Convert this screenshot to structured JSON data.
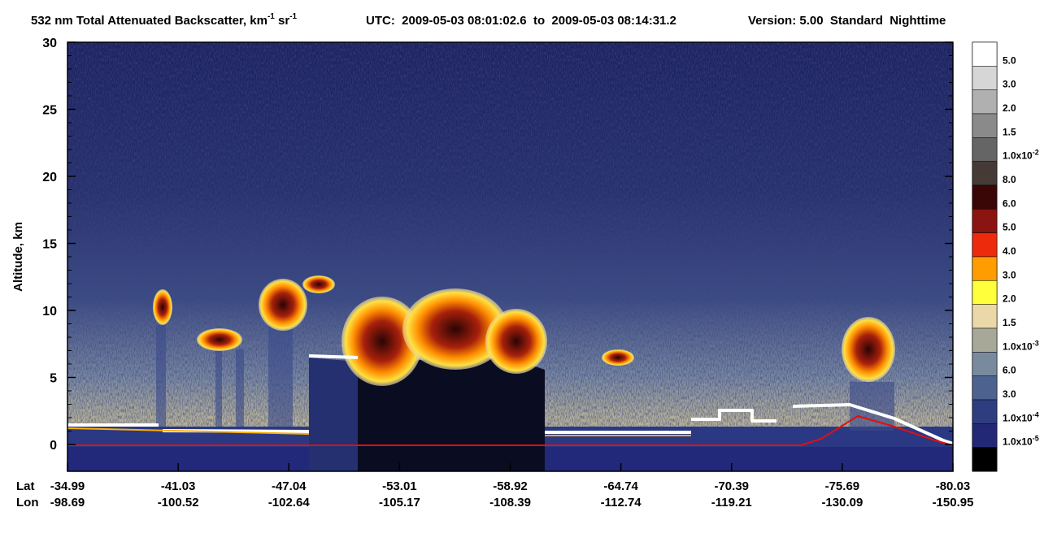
{
  "chart_data": {
    "type": "heatmap",
    "title_parts": [
      "532 nm Total Attenuated Backscatter, km",
      "-1",
      " sr",
      "-1"
    ],
    "utc": "UTC:  2009-05-03 08:01:02.6  to  2009-05-03 08:14:31.2",
    "version": "Version: 5.00  Standard  Nighttime",
    "y_label": "Altitude, km",
    "ylim": [
      -2,
      30
    ],
    "yticks": [
      0,
      5,
      10,
      15,
      20,
      25,
      30
    ],
    "x_row_labels": [
      "Lat",
      "Lon"
    ],
    "lat": [
      "-34.99",
      "-41.03",
      "-47.04",
      "-53.01",
      "-58.92",
      "-64.74",
      "-70.39",
      "-75.69",
      "-80.03"
    ],
    "lon": [
      "-98.69",
      "-100.52",
      "-102.64",
      "-105.17",
      "-108.39",
      "-112.74",
      "-119.21",
      "-130.09",
      "-150.95"
    ],
    "colorbar": [
      {
        "color": "#ffffff",
        "label": "5.0"
      },
      {
        "color": "#d6d6d6",
        "label": "3.0"
      },
      {
        "color": "#b0b0b0",
        "label": "2.0"
      },
      {
        "color": "#8a8a8a",
        "label": "1.5"
      },
      {
        "color": "#656565",
        "label": "1.0x10",
        "exp": "-2"
      },
      {
        "color": "#453a36",
        "label": "8.0"
      },
      {
        "color": "#3a0606",
        "label": "6.0"
      },
      {
        "color": "#8a1410",
        "label": "5.0"
      },
      {
        "color": "#ee2a0c",
        "label": "4.0"
      },
      {
        "color": "#ff9c00",
        "label": "3.0"
      },
      {
        "color": "#ffff3c",
        "label": "2.0"
      },
      {
        "color": "#ead8a8",
        "label": "1.5"
      },
      {
        "color": "#a8a898",
        "label": "1.0x10",
        "exp": "-3"
      },
      {
        "color": "#7a8a9e",
        "label": "6.0"
      },
      {
        "color": "#4e6290",
        "label": "3.0"
      },
      {
        "color": "#2e3c80",
        "label": "1.0x10",
        "exp": "-4"
      },
      {
        "color": "#232876",
        "label": "1.0x10",
        "exp": "-5"
      },
      {
        "color": "#000000"
      }
    ]
  }
}
